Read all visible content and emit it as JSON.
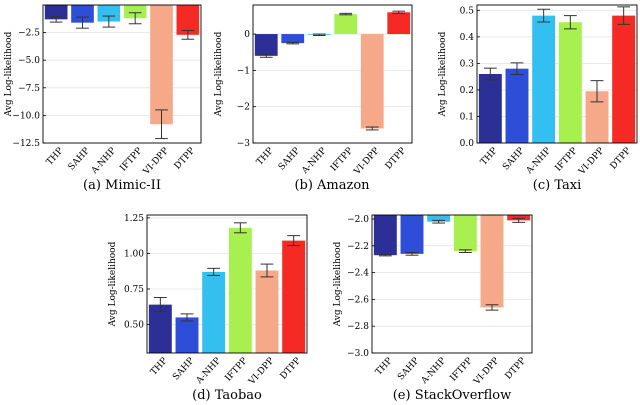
{
  "chart_data": [
    {
      "type": "bar",
      "caption": "(a) Mimic-II",
      "ylabel": "Avg Log-likelihood",
      "categories": [
        "THP",
        "SAHP",
        "A-NHP",
        "IFTPP",
        "VI-DPP",
        "DTPP"
      ],
      "values": [
        -1.3,
        -1.6,
        -1.5,
        -1.2,
        -10.8,
        -2.7
      ],
      "errors": [
        0.25,
        0.5,
        0.5,
        0.5,
        1.3,
        0.4
      ],
      "ylim": [
        -12.5,
        0
      ],
      "yticks": [
        -12.5,
        -10.0,
        -7.5,
        -5.0,
        -2.5
      ],
      "ytick_labels": [
        "−12.5",
        "−10.0",
        "−7.5",
        "−5.0",
        "−2.5"
      ]
    },
    {
      "type": "bar",
      "caption": "(b) Amazon",
      "ylabel": "Avg Log-likelihood",
      "categories": [
        "THP",
        "SAHP",
        "A-NHP",
        "IFTPP",
        "VI-DPP",
        "DTPP"
      ],
      "values": [
        -0.6,
        -0.25,
        -0.02,
        0.55,
        -2.6,
        0.6
      ],
      "errors": [
        0.04,
        0.02,
        0.02,
        0.02,
        0.04,
        0.03
      ],
      "ylim": [
        -3,
        0.8
      ],
      "yticks": [
        -3,
        -2,
        -1,
        0
      ],
      "ytick_labels": [
        "−3",
        "−2",
        "−1",
        "0"
      ]
    },
    {
      "type": "bar",
      "caption": "(c) Taxi",
      "ylabel": "Avg Log-likelihood",
      "categories": [
        "THP",
        "SAHP",
        "A-NHP",
        "IFTPP",
        "VI-DPP",
        "DTPP"
      ],
      "values": [
        0.26,
        0.28,
        0.48,
        0.455,
        0.195,
        0.48
      ],
      "errors": [
        0.022,
        0.022,
        0.024,
        0.025,
        0.04,
        0.033
      ],
      "ylim": [
        0.0,
        0.52
      ],
      "yticks": [
        0.0,
        0.1,
        0.2,
        0.3,
        0.4,
        0.5
      ],
      "ytick_labels": [
        "0.0",
        "0.1",
        "0.2",
        "0.3",
        "0.4",
        "0.5"
      ]
    },
    {
      "type": "bar",
      "caption": "(d) Taobao",
      "ylabel": "Avg Log-likelihood",
      "categories": [
        "THP",
        "SAHP",
        "A-NHP",
        "IFTPP",
        "VI-DPP",
        "DTPP"
      ],
      "values": [
        0.64,
        0.55,
        0.87,
        1.18,
        0.88,
        1.09
      ],
      "errors": [
        0.05,
        0.025,
        0.025,
        0.035,
        0.045,
        0.035
      ],
      "ylim": [
        0.3,
        1.27
      ],
      "yticks": [
        0.5,
        0.75,
        1.0,
        1.25
      ],
      "ytick_labels": [
        "0.50",
        "0.75",
        "1.00",
        "1.25"
      ]
    },
    {
      "type": "bar",
      "caption": "(e) StackOverflow",
      "ylabel": "Avg Log-likelihood",
      "categories": [
        "THP",
        "SAHP",
        "A-NHP",
        "IFTPP",
        "VI-DPP",
        "DTPP"
      ],
      "values": [
        -2.27,
        -2.26,
        -2.02,
        -2.24,
        -2.66,
        -2.01
      ],
      "errors": [
        0.005,
        0.01,
        0.01,
        0.01,
        0.02,
        0.015
      ],
      "ylim": [
        -3.0,
        -1.97
      ],
      "yticks": [
        -3.0,
        -2.8,
        -2.6,
        -2.4,
        -2.2,
        -2.0
      ],
      "ytick_labels": [
        "−3.0",
        "−2.8",
        "−2.6",
        "−2.4",
        "−2.2",
        "−2.0"
      ]
    }
  ],
  "colors": [
    "#2b2f96",
    "#2f4ed8",
    "#33c0f0",
    "#a8f050",
    "#f5a988",
    "#f52a24"
  ]
}
